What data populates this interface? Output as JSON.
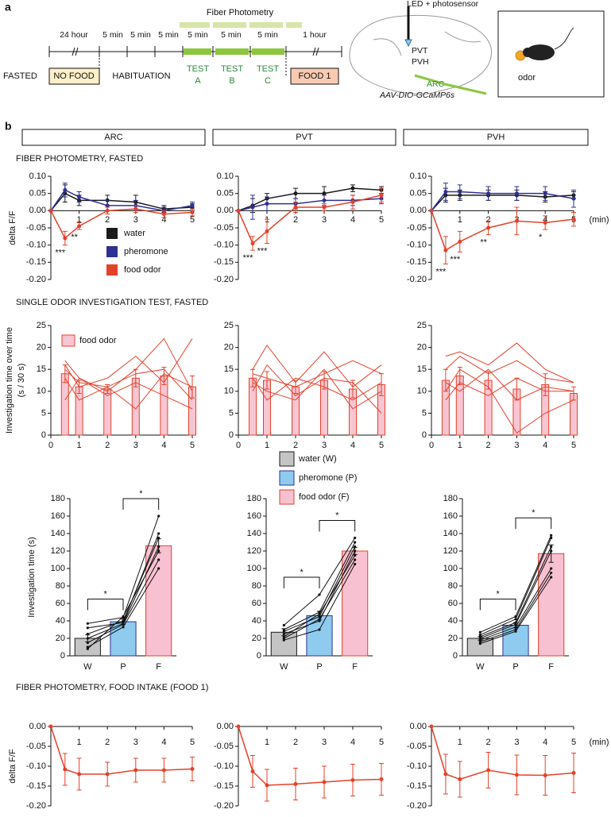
{
  "panel_a": {
    "label": "a",
    "photometry": "Fiber Photometry",
    "durations": [
      "24 hour",
      "5 min",
      "5 min",
      "5 min",
      "5 min",
      "5 min",
      "5 min",
      "1 hour"
    ],
    "fasted": "FASTED",
    "no_food": "NO FOOD",
    "habituation": "HABITUATION",
    "tests": [
      [
        "TEST",
        "A"
      ],
      [
        "TEST",
        "B"
      ],
      [
        "TEST",
        "C"
      ]
    ],
    "food": "FOOD 1",
    "led": "LED + photosensor",
    "regions": [
      "PVT",
      "PVH",
      "ARC"
    ],
    "virus": "AAV-DIO-GCaMP6s",
    "odor": "odor"
  },
  "panel_b": {
    "label": "b",
    "regions": [
      "ARC",
      "PVT",
      "PVH"
    ],
    "sections": [
      "FIBER PHOTOMETRY, FASTED",
      "SINGLE ODOR INVESTIGATION TEST, FASTED",
      "FIBER PHOTOMETRY, FOOD INTAKE (FOOD 1)"
    ]
  },
  "chart_data": [
    {
      "type": "line",
      "ylabel": "delta F/F",
      "x": [
        0,
        0.5,
        1,
        2,
        3,
        4,
        5
      ],
      "xlim": [
        0,
        5
      ],
      "xticks": [
        1,
        2,
        3,
        4,
        5
      ],
      "ylim": [
        -0.2,
        0.1
      ],
      "yticks": [
        {
          "value": 0.1,
          "label": "0.10"
        },
        0.05,
        {
          "value": 0,
          "label": "0.00"
        },
        -0.05,
        {
          "value": -0.1,
          "label": "-0.10"
        },
        -0.15,
        {
          "value": -0.2,
          "label": "-0.20"
        }
      ],
      "series": [
        {
          "name": "water",
          "color": "#1b1b1b",
          "values": [
            0,
            0.05,
            0.03,
            0.03,
            0.025,
            0.005,
            0.01
          ],
          "errors": [
            0,
            0.025,
            0.015,
            0.015,
            0.02,
            0.01,
            0.01
          ]
        },
        {
          "name": "pheromone",
          "color": "#2e3192",
          "values": [
            0,
            0.06,
            0.04,
            0.015,
            0.015,
            0,
            0.015
          ],
          "errors": [
            0,
            0.02,
            0.015,
            0.015,
            0.015,
            0.01,
            0.01
          ]
        },
        {
          "name": "food odor",
          "color": "#e4412b",
          "values": [
            0,
            -0.08,
            -0.045,
            0,
            0.005,
            -0.01,
            -0.005
          ],
          "errors": [
            0,
            0.02,
            0.01,
            0.01,
            0.01,
            0.01,
            0.01
          ],
          "significance": [
            null,
            "***",
            "**",
            null,
            null,
            null,
            null
          ]
        }
      ]
    },
    {
      "type": "line",
      "x": [
        0,
        0.5,
        1,
        2,
        3,
        4,
        5
      ],
      "xlim": [
        0,
        5
      ],
      "xticks": [
        1,
        2,
        3,
        4,
        5
      ],
      "ylim": [
        -0.2,
        0.1
      ],
      "yticks": [
        {
          "value": 0.1,
          "label": "0.10"
        },
        0.05,
        {
          "value": 0,
          "label": "0.00"
        },
        -0.05,
        {
          "value": -0.1,
          "label": "-0.10"
        },
        -0.15,
        {
          "value": -0.2,
          "label": "-0.20"
        }
      ],
      "series": [
        {
          "color": "#1b1b1b",
          "values": [
            0,
            0.015,
            0.035,
            0.05,
            0.05,
            0.065,
            0.06
          ],
          "errors": [
            0,
            0.02,
            0.015,
            0.015,
            0.02,
            0.01,
            0.01
          ]
        },
        {
          "color": "#2e3192",
          "values": [
            0,
            0.01,
            0.02,
            0.02,
            0.03,
            0.03,
            0.035
          ],
          "errors": [
            0,
            0.035,
            0.02,
            0.015,
            0.015,
            0.015,
            0.015
          ]
        },
        {
          "color": "#e4412b",
          "values": [
            0,
            -0.095,
            -0.06,
            0.01,
            0.01,
            0.025,
            0.045
          ],
          "errors": [
            0,
            0.02,
            0.035,
            0.015,
            0.01,
            0.02,
            0.02
          ],
          "significance": [
            null,
            "***",
            "***",
            null,
            null,
            null,
            null
          ]
        }
      ]
    },
    {
      "type": "line",
      "xlabel": "(min)",
      "x": [
        0,
        0.5,
        1,
        2,
        3,
        4,
        5
      ],
      "xlim": [
        0,
        5
      ],
      "xticks": [
        1,
        2,
        3,
        4,
        5
      ],
      "ylim": [
        -0.2,
        0.1
      ],
      "yticks": [
        {
          "value": 0.1,
          "label": "0.10"
        },
        0.05,
        {
          "value": 0,
          "label": "0.00"
        },
        -0.05,
        {
          "value": -0.1,
          "label": "-0.10"
        },
        -0.15,
        {
          "value": -0.2,
          "label": "-0.20"
        }
      ],
      "series": [
        {
          "color": "#1b1b1b",
          "values": [
            0,
            0.045,
            0.045,
            0.045,
            0.045,
            0.04,
            0.045
          ],
          "errors": [
            0,
            0.02,
            0.015,
            0.015,
            0.015,
            0.015,
            0.01
          ]
        },
        {
          "color": "#2e3192",
          "values": [
            0,
            0.055,
            0.055,
            0.05,
            0.05,
            0.05,
            0.035
          ],
          "errors": [
            0,
            0.025,
            0.02,
            0.02,
            0.02,
            0.02,
            0.025
          ]
        },
        {
          "color": "#e4412b",
          "values": [
            0,
            -0.115,
            -0.09,
            -0.05,
            -0.03,
            -0.035,
            -0.025
          ],
          "errors": [
            0,
            0.04,
            0.03,
            0.02,
            0.04,
            0.02,
            0.02
          ],
          "significance": [
            null,
            "***",
            "***",
            "**",
            null,
            "*",
            null
          ]
        }
      ]
    },
    {
      "type": "bar",
      "ylabel": [
        "Investigation time over time",
        "(s / 30 s)"
      ],
      "x": [
        0.5,
        1,
        2,
        3,
        4,
        5
      ],
      "xlim": [
        0,
        5
      ],
      "xticks": [
        0,
        1,
        2,
        3,
        4,
        5
      ],
      "ylim": [
        0,
        25
      ],
      "yticks": [
        0,
        5,
        10,
        15,
        20,
        25
      ],
      "series": [
        {
          "name": "food odor",
          "color": "#e4412b",
          "fill": "#f8c6d3",
          "values": [
            14,
            11,
            10.5,
            13,
            13.5,
            11
          ],
          "errors": [
            2,
            1.5,
            1,
            2,
            2,
            2.5
          ]
        }
      ],
      "individuals": [
        [
          17,
          13,
          10,
          15,
          22,
          10
        ],
        [
          16,
          11,
          13,
          18,
          12,
          22
        ],
        [
          15,
          12,
          11,
          14,
          15,
          8
        ],
        [
          13,
          8,
          11,
          6,
          14,
          11
        ],
        [
          8,
          13,
          9,
          12,
          9,
          6
        ]
      ]
    },
    {
      "type": "bar",
      "x": [
        0.5,
        1,
        2,
        3,
        4,
        5
      ],
      "xlim": [
        0,
        5
      ],
      "xticks": [
        0,
        1,
        2,
        3,
        4,
        5
      ],
      "ylim": [
        0,
        25
      ],
      "yticks": [
        0,
        5,
        10,
        15,
        20,
        25
      ],
      "series": [
        {
          "color": "#e4412b",
          "fill": "#f8c6d3",
          "values": [
            13,
            12.5,
            11,
            12.5,
            10.5,
            11.5
          ],
          "errors": [
            2,
            2,
            1.5,
            2,
            2,
            2.5
          ]
        }
      ],
      "individuals": [
        [
          15,
          20.5,
          12,
          19,
          11,
          16
        ],
        [
          14,
          13,
          11,
          14,
          17,
          14
        ],
        [
          13,
          8,
          13,
          11,
          8,
          12
        ],
        [
          10,
          16,
          9,
          13,
          12,
          5
        ],
        [
          12,
          10,
          8,
          15,
          6,
          10
        ]
      ]
    },
    {
      "type": "bar",
      "x": [
        0.5,
        1,
        2,
        3,
        4,
        5
      ],
      "xlim": [
        0,
        5
      ],
      "xticks": [
        0,
        1,
        2,
        3,
        4,
        5
      ],
      "ylim": [
        0,
        25
      ],
      "yticks": [
        0,
        5,
        10,
        15,
        20,
        25
      ],
      "series": [
        {
          "color": "#e4412b",
          "fill": "#f8c6d3",
          "values": [
            12.5,
            13.5,
            12.5,
            10.5,
            11.5,
            9.5
          ],
          "errors": [
            2.5,
            2,
            2,
            2.5,
            2.5,
            1.5
          ]
        }
      ],
      "individuals": [
        [
          18,
          19,
          16,
          21,
          15,
          12
        ],
        [
          15,
          18,
          14,
          17,
          13,
          12
        ],
        [
          12,
          10,
          15,
          8,
          11,
          10
        ],
        [
          10,
          15,
          11,
          0.5,
          5,
          8
        ],
        [
          8,
          12,
          9,
          13,
          10,
          10
        ]
      ]
    },
    {
      "type": "bar",
      "ylabel": "Investigation time (s)",
      "categories": [
        "W",
        "P",
        "F"
      ],
      "colors": [
        "#c4c4c4",
        "#8ecbef",
        "#f8c1d2"
      ],
      "edge_colors": [
        "#1b1b1b",
        "#2e3192",
        "#e4412b"
      ],
      "ylim": [
        0,
        180
      ],
      "yticks": [
        0,
        20,
        40,
        60,
        80,
        100,
        120,
        140,
        160,
        180
      ],
      "values": [
        20,
        39,
        126
      ],
      "errors": [
        4,
        3,
        8
      ],
      "significance": [
        "*",
        "*"
      ],
      "individuals": [
        [
          37,
          44,
          160
        ],
        [
          32,
          38,
          140
        ],
        [
          25,
          40,
          135
        ],
        [
          20,
          37,
          125
        ],
        [
          15,
          36,
          110
        ],
        [
          10,
          33,
          100
        ],
        [
          8,
          45,
          120
        ]
      ]
    },
    {
      "type": "bar",
      "legend": [
        "water (W)",
        "pheromone (P)",
        "food odor (F)"
      ],
      "categories": [
        "W",
        "P",
        "F"
      ],
      "colors": [
        "#c4c4c4",
        "#8ecbef",
        "#f8c1d2"
      ],
      "edge_colors": [
        "#1b1b1b",
        "#2e3192",
        "#e4412b"
      ],
      "ylim": [
        0,
        180
      ],
      "yticks": [
        0,
        20,
        40,
        60,
        80,
        100,
        120,
        140,
        160,
        180
      ],
      "values": [
        27,
        46,
        120
      ],
      "errors": [
        4,
        5,
        4
      ],
      "significance": [
        "*",
        "*"
      ],
      "individuals": [
        [
          35,
          70,
          135
        ],
        [
          30,
          50,
          130
        ],
        [
          28,
          45,
          125
        ],
        [
          25,
          40,
          120
        ],
        [
          22,
          48,
          115
        ],
        [
          20,
          42,
          110
        ],
        [
          18,
          30,
          105
        ]
      ]
    },
    {
      "type": "bar",
      "categories": [
        "W",
        "P",
        "F"
      ],
      "colors": [
        "#c4c4c4",
        "#8ecbef",
        "#f8c1d2"
      ],
      "edge_colors": [
        "#1b1b1b",
        "#2e3192",
        "#e4412b"
      ],
      "ylim": [
        0,
        180
      ],
      "yticks": [
        0,
        20,
        40,
        60,
        80,
        100,
        120,
        140,
        160,
        180
      ],
      "values": [
        20,
        35,
        117
      ],
      "errors": [
        2,
        3,
        10
      ],
      "significance": [
        "*",
        "*"
      ],
      "individuals": [
        [
          27,
          45,
          138
        ],
        [
          24,
          42,
          135
        ],
        [
          22,
          38,
          125
        ],
        [
          20,
          36,
          120
        ],
        [
          18,
          33,
          100
        ],
        [
          16,
          30,
          95
        ],
        [
          14,
          28,
          90
        ]
      ]
    },
    {
      "type": "line",
      "ylabel": "delta F/F",
      "x": [
        0,
        0.5,
        1,
        2,
        3,
        4,
        5
      ],
      "xlim": [
        0,
        5
      ],
      "xticks": [
        1,
        2,
        3,
        4,
        5
      ],
      "ylim": [
        -0.2,
        0
      ],
      "yticks": [
        {
          "value": 0,
          "label": "0.00"
        },
        -0.05,
        {
          "value": -0.1,
          "label": "-0.10"
        },
        -0.15,
        {
          "value": -0.2,
          "label": "-0.20"
        }
      ],
      "series": [
        {
          "color": "#e4412b",
          "values": [
            0,
            -0.108,
            -0.12,
            -0.12,
            -0.11,
            -0.11,
            -0.107
          ],
          "errors": [
            0,
            0.04,
            0.04,
            0.03,
            0.03,
            0.03,
            0.03
          ]
        }
      ]
    },
    {
      "type": "line",
      "x": [
        0,
        0.5,
        1,
        2,
        3,
        4,
        5
      ],
      "xlim": [
        0,
        5
      ],
      "xticks": [
        1,
        2,
        3,
        4,
        5
      ],
      "ylim": [
        -0.2,
        0
      ],
      "yticks": [
        {
          "value": 0,
          "label": "0.00"
        },
        -0.05,
        {
          "value": -0.1,
          "label": "-0.10"
        },
        -0.15,
        {
          "value": -0.2,
          "label": "-0.20"
        }
      ],
      "series": [
        {
          "color": "#e4412b",
          "values": [
            0,
            -0.113,
            -0.148,
            -0.145,
            -0.14,
            -0.135,
            -0.133
          ],
          "errors": [
            0,
            0.04,
            0.04,
            0.04,
            0.04,
            0.04,
            0.04
          ]
        }
      ]
    },
    {
      "type": "line",
      "xlabel": "(min)",
      "x": [
        0,
        0.5,
        1,
        2,
        3,
        4,
        5
      ],
      "xlim": [
        0,
        5
      ],
      "xticks": [
        1,
        2,
        3,
        4,
        5
      ],
      "ylim": [
        -0.2,
        0
      ],
      "yticks": [
        {
          "value": 0,
          "label": "0.00"
        },
        -0.05,
        {
          "value": -0.1,
          "label": "-0.10"
        },
        -0.15,
        {
          "value": -0.2,
          "label": "-0.20"
        }
      ],
      "series": [
        {
          "color": "#e4412b",
          "values": [
            0,
            -0.12,
            -0.133,
            -0.11,
            -0.122,
            -0.123,
            -0.117
          ],
          "errors": [
            0,
            0.05,
            0.045,
            0.045,
            0.05,
            0.05,
            0.05
          ]
        }
      ]
    }
  ]
}
